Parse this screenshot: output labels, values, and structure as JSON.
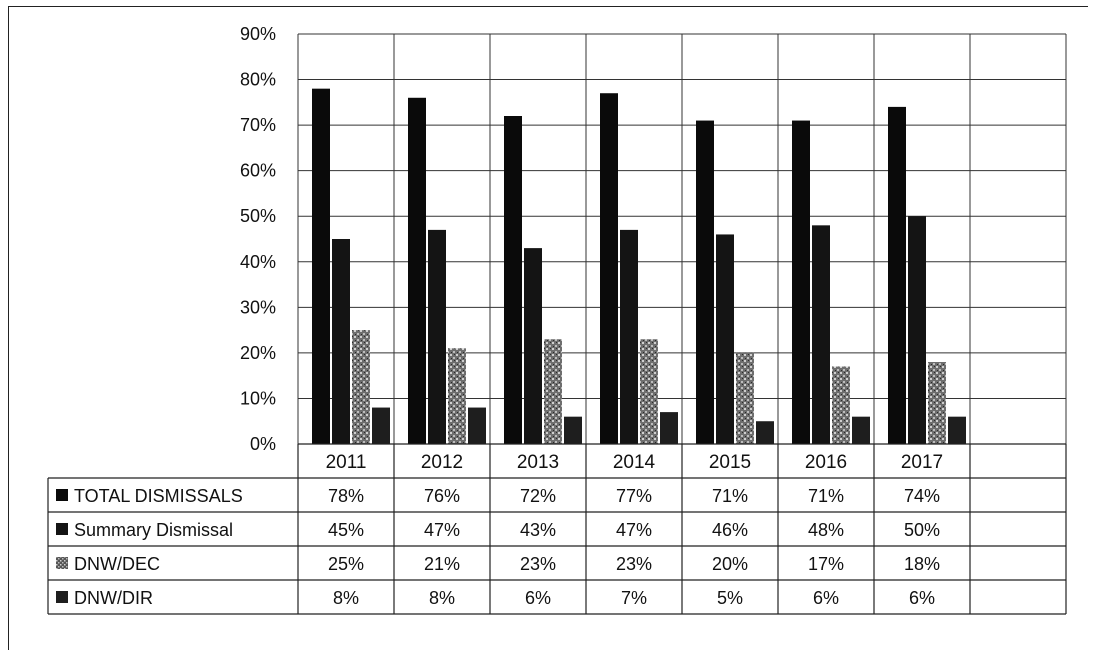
{
  "chart_data": {
    "type": "bar",
    "categories": [
      "2011",
      "2012",
      "2013",
      "2014",
      "2015",
      "2016",
      "2017"
    ],
    "y_ticks": [
      "0%",
      "10%",
      "20%",
      "30%",
      "40%",
      "50%",
      "60%",
      "70%",
      "80%",
      "90%"
    ],
    "ylim": [
      0,
      90
    ],
    "grid": true,
    "legend": "data-table-below",
    "series": [
      {
        "name": "TOTAL DISMISSALS",
        "color": "#0a0a0a",
        "pattern": "solid",
        "values": [
          78,
          76,
          72,
          77,
          71,
          71,
          74
        ],
        "labels": [
          "78%",
          "76%",
          "72%",
          "77%",
          "71%",
          "71%",
          "74%"
        ]
      },
      {
        "name": "Summary Dismissal",
        "color": "#141414",
        "pattern": "solid",
        "values": [
          45,
          47,
          43,
          47,
          46,
          48,
          50
        ],
        "labels": [
          "45%",
          "47%",
          "43%",
          "47%",
          "46%",
          "48%",
          "50%"
        ]
      },
      {
        "name": "DNW/DEC",
        "color": "#5a5a5a",
        "pattern": "speckled",
        "values": [
          25,
          21,
          23,
          23,
          20,
          17,
          18
        ],
        "labels": [
          "25%",
          "21%",
          "23%",
          "23%",
          "20%",
          "17%",
          "18%"
        ]
      },
      {
        "name": "DNW/DIR",
        "color": "#1e1e1e",
        "pattern": "solid",
        "values": [
          8,
          8,
          6,
          7,
          5,
          6,
          6
        ],
        "labels": [
          "8%",
          "8%",
          "6%",
          "7%",
          "5%",
          "6%",
          "6%"
        ]
      }
    ]
  }
}
